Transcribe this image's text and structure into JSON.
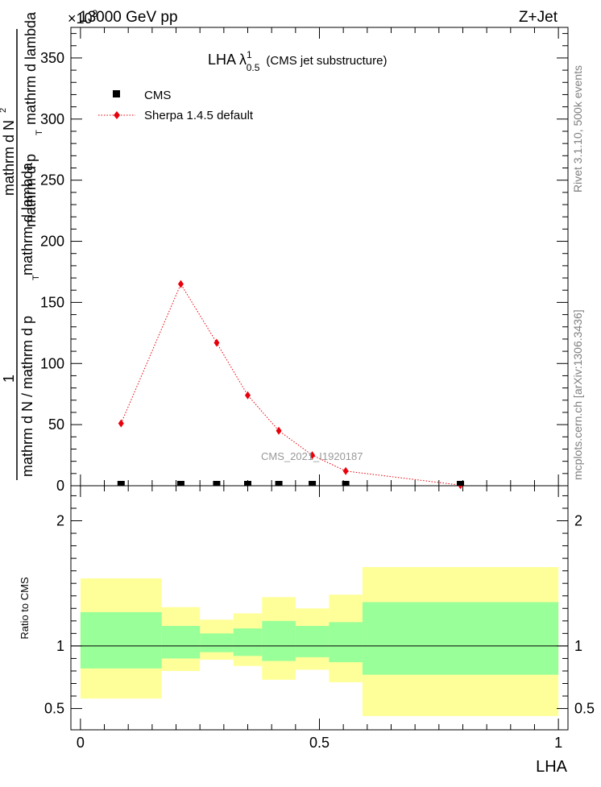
{
  "header": {
    "energy": "13000 GeV pp",
    "process": "Z+Jet",
    "exponent": "×10",
    "exponent_power": "3"
  },
  "plot": {
    "title_main": "LHA λ",
    "title_sup": "1",
    "title_sub": "0.5",
    "title_rest": "(CMS jet substructure)",
    "ylabel_num": "1",
    "ylabel_den": "mathrm d N / mathrm d p",
    "ylabel_den_sub": "T",
    "ylabel_den2": "mathrm d lambda",
    "ylabel_numer": "mathrm d N",
    "ylabel_numer_sup": "2",
    "ylabel_numer_rest": "mathrm d p",
    "ylabel_numer_rest_sub": "T",
    "ylabel_numer_rest2": "mathrm d lambda",
    "analysis_id": "CMS_2021_I1920187",
    "side_label_top": "Rivet 3.1.10,  500k events",
    "side_label_bottom": "mcplots.cern.ch [arXiv:1306.3436]",
    "ratio_ylabel": "Ratio to CMS",
    "xlabel": "LHA"
  },
  "legend": {
    "items": [
      {
        "label": "CMS",
        "color": "#000000",
        "marker": "square"
      },
      {
        "label": "Sherpa 1.4.5 default",
        "color": "#e8000b",
        "marker": "diamond"
      }
    ]
  },
  "chart_data": [
    {
      "type": "line",
      "panel": "main",
      "xlim": [
        -0.02,
        1.02
      ],
      "ylim": [
        0,
        375
      ],
      "yticks": [
        0,
        50,
        100,
        150,
        200,
        250,
        300,
        350
      ],
      "ytick_labels": [
        "0",
        "50",
        "100",
        "150",
        "200",
        "250",
        "300",
        "350"
      ],
      "series": [
        {
          "name": "CMS",
          "color": "#000000",
          "marker": "square",
          "x": [
            0.085,
            0.21,
            0.285,
            0.35,
            0.415,
            0.485,
            0.555,
            0.795
          ],
          "y": [
            0,
            0,
            0,
            0,
            0,
            0,
            0,
            0
          ]
        },
        {
          "name": "Sherpa 1.4.5 default",
          "color": "#e8000b",
          "marker": "diamond",
          "x": [
            0.085,
            0.21,
            0.285,
            0.35,
            0.415,
            0.485,
            0.555,
            0.795
          ],
          "y": [
            51,
            165,
            117,
            74,
            45,
            25,
            12,
            0.5
          ]
        }
      ]
    },
    {
      "type": "area",
      "panel": "ratio",
      "ylabel": "Ratio to CMS",
      "xlabel": "LHA",
      "xlim": [
        -0.02,
        1.02
      ],
      "ylim": [
        0.33,
        2.28
      ],
      "xticks": [
        0,
        0.5,
        1
      ],
      "xtick_labels": [
        "0",
        "0.5",
        "1"
      ],
      "yticks": [
        0.5,
        1,
        2
      ],
      "ytick_labels": [
        "0.5",
        "1",
        "2"
      ],
      "bins": [
        {
          "x0": 0.0,
          "x1": 0.17,
          "inner": [
            0.82,
            1.27
          ],
          "outer": [
            0.58,
            1.54
          ]
        },
        {
          "x0": 0.17,
          "x1": 0.25,
          "inner": [
            0.9,
            1.16
          ],
          "outer": [
            0.8,
            1.31
          ]
        },
        {
          "x0": 0.25,
          "x1": 0.32,
          "inner": [
            0.95,
            1.1
          ],
          "outer": [
            0.89,
            1.21
          ]
        },
        {
          "x0": 0.32,
          "x1": 0.38,
          "inner": [
            0.92,
            1.14
          ],
          "outer": [
            0.84,
            1.26
          ]
        },
        {
          "x0": 0.38,
          "x1": 0.45,
          "inner": [
            0.88,
            1.2
          ],
          "outer": [
            0.73,
            1.39
          ]
        },
        {
          "x0": 0.45,
          "x1": 0.52,
          "inner": [
            0.91,
            1.16
          ],
          "outer": [
            0.81,
            1.3
          ]
        },
        {
          "x0": 0.52,
          "x1": 0.59,
          "inner": [
            0.87,
            1.19
          ],
          "outer": [
            0.71,
            1.41
          ]
        },
        {
          "x0": 0.59,
          "x1": 1.0,
          "inner": [
            0.77,
            1.35
          ],
          "outer": [
            0.44,
            1.63
          ]
        }
      ],
      "reference": 1
    }
  ],
  "colors": {
    "band_inner": "#99ff99",
    "band_outer": "#ffff99",
    "sherpa": "#e8000b",
    "cms": "#000000",
    "side_text": "#7f7f7f",
    "analysis_text": "#999999"
  }
}
